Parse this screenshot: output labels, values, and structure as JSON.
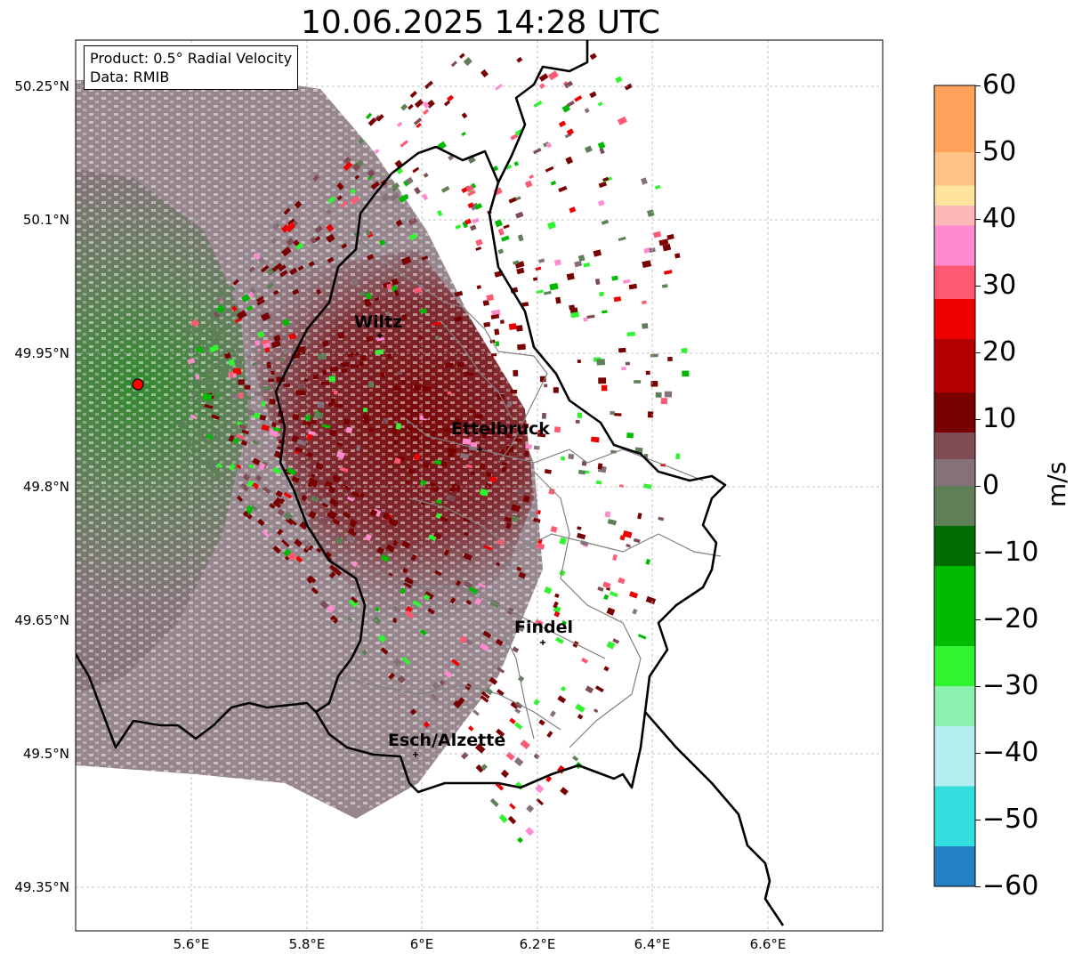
{
  "title": "10.06.2025 14:28 UTC",
  "info": {
    "product": "Product: 0.5° Radial Velocity",
    "source": "Data: RMIB"
  },
  "lat_labels": [
    "50.25°N",
    "50.1°N",
    "49.95°N",
    "49.8°N",
    "49.65°N",
    "49.5°N",
    "49.35°N"
  ],
  "lon_labels": [
    "5.6°E",
    "5.8°E",
    "6°E",
    "6.2°E",
    "6.4°E",
    "6.6°E"
  ],
  "colorbar": {
    "unit": "m/s",
    "min": -60,
    "max": 60,
    "tick_labels": [
      "60",
      "50",
      "40",
      "30",
      "20",
      "10",
      "0",
      "−10",
      "−20",
      "−30",
      "−40",
      "−50",
      "−60"
    ],
    "bands": [
      {
        "from": 50,
        "to": 60,
        "color": "#ffa35c"
      },
      {
        "from": 45,
        "to": 50,
        "color": "#ffc485"
      },
      {
        "from": 42,
        "to": 45,
        "color": "#ffe49e"
      },
      {
        "from": 39,
        "to": 42,
        "color": "#ffb8b8"
      },
      {
        "from": 33,
        "to": 39,
        "color": "#ff8ad0"
      },
      {
        "from": 28,
        "to": 33,
        "color": "#ff5a74"
      },
      {
        "from": 22,
        "to": 28,
        "color": "#ef0000"
      },
      {
        "from": 14,
        "to": 22,
        "color": "#b40000"
      },
      {
        "from": 8,
        "to": 14,
        "color": "#780000"
      },
      {
        "from": 4,
        "to": 8,
        "color": "#7e4d55"
      },
      {
        "from": 0,
        "to": 4,
        "color": "#85717a"
      },
      {
        "from": -6,
        "to": 0,
        "color": "#5f7f58"
      },
      {
        "from": -12,
        "to": -6,
        "color": "#006d00"
      },
      {
        "from": -24,
        "to": -12,
        "color": "#00ba00"
      },
      {
        "from": -30,
        "to": -24,
        "color": "#2ff42f"
      },
      {
        "from": -36,
        "to": -30,
        "color": "#8cf0b0"
      },
      {
        "from": -45,
        "to": -36,
        "color": "#b4eef0"
      },
      {
        "from": -54,
        "to": -45,
        "color": "#33dede"
      },
      {
        "from": -60,
        "to": -54,
        "color": "#2480c4"
      }
    ]
  },
  "cities": [
    {
      "name": "Wiltz"
    },
    {
      "name": "Ettelbruck"
    },
    {
      "name": "Findel"
    },
    {
      "name": "Esch/Alzette"
    }
  ],
  "colors": {
    "border": "#000000",
    "canton_lines": "#808080",
    "radar_site": "#ff0000",
    "inbound_green": "#5f7f58",
    "outbound_maroon": "#780000",
    "near_zero_grey": "#85717a"
  }
}
